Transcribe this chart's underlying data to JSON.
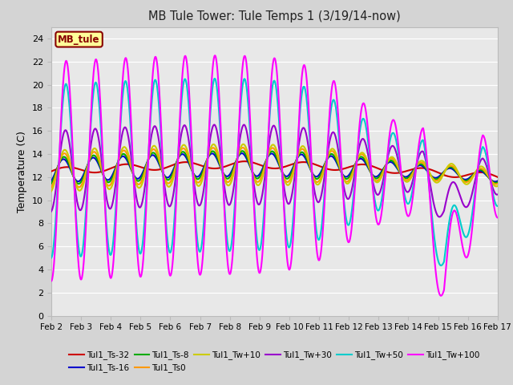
{
  "title": "MB Tule Tower: Tule Temps 1 (3/19/14-now)",
  "ylabel": "Temperature (C)",
  "ylim": [
    0,
    25
  ],
  "yticks": [
    0,
    2,
    4,
    6,
    8,
    10,
    12,
    14,
    16,
    18,
    20,
    22,
    24
  ],
  "date_labels": [
    "Feb 2",
    "Feb 3",
    "Feb 4",
    "Feb 5",
    "Feb 6",
    "Feb 7",
    "Feb 8",
    "Feb 9",
    "Feb 10",
    "Feb 11",
    "Feb 12",
    "Feb 13",
    "Feb 14",
    "Feb 15",
    "Feb 16",
    "Feb 17"
  ],
  "bg_color": "#e0e0e0",
  "legend_box": {
    "label": "MB_tule",
    "facecolor": "#ffff99",
    "edgecolor": "#880000",
    "textcolor": "#880000"
  },
  "series": [
    {
      "label": "Tul1_Ts-32",
      "color": "#cc0000",
      "lw": 1.5
    },
    {
      "label": "Tul1_Ts-16",
      "color": "#0000cc",
      "lw": 1.5
    },
    {
      "label": "Tul1_Ts-8",
      "color": "#00aa00",
      "lw": 1.5
    },
    {
      "label": "Tul1_Ts0",
      "color": "#ff9900",
      "lw": 1.5
    },
    {
      "label": "Tul1_Tw+10",
      "color": "#cccc00",
      "lw": 1.5
    },
    {
      "label": "Tul1_Tw+30",
      "color": "#9900cc",
      "lw": 1.5
    },
    {
      "label": "Tul1_Tw+50",
      "color": "#00cccc",
      "lw": 1.5
    },
    {
      "label": "Tul1_Tw+100",
      "color": "#ff00ff",
      "lw": 1.5
    }
  ],
  "legend_ncol_row1": 6,
  "legend_ncol_row2": 2
}
